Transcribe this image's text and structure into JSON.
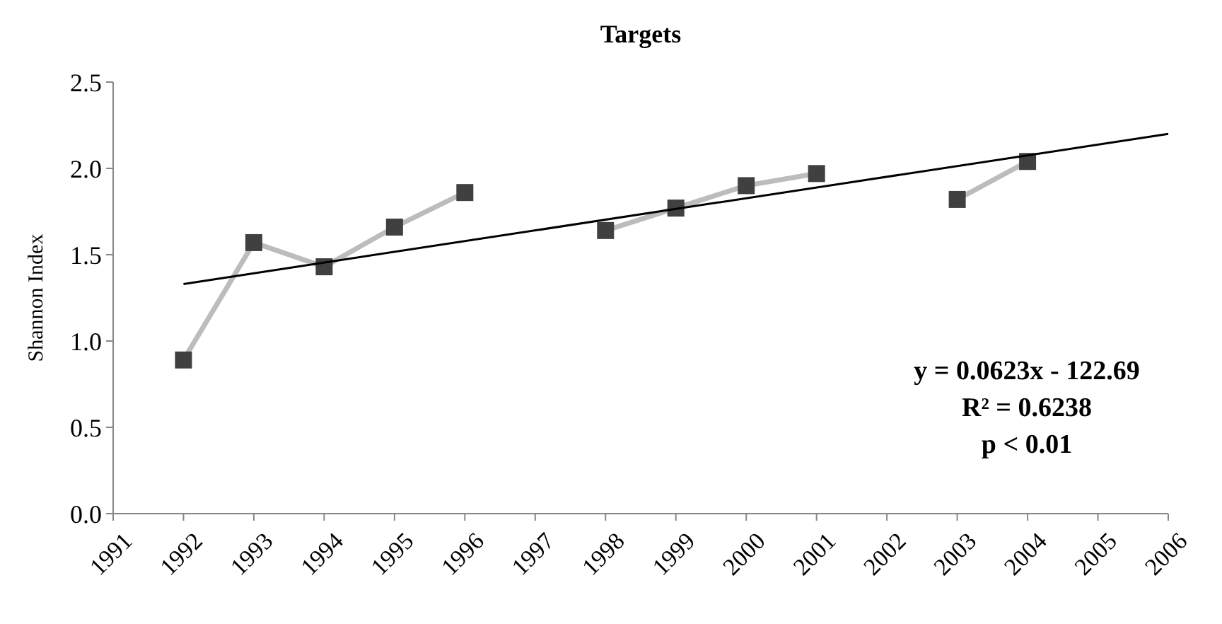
{
  "chart_data": {
    "type": "line",
    "title": "Targets",
    "ylabel": "Shannon Index",
    "x": [
      1992,
      1993,
      1994,
      1995,
      1996,
      1997,
      1998,
      1999,
      2000,
      2001,
      2002,
      2003,
      2004
    ],
    "series": [
      {
        "color": "#404040",
        "values": [
          0.89,
          1.57,
          1.43,
          1.66,
          1.86,
          null,
          1.64,
          1.77,
          1.9,
          1.97,
          null,
          1.82,
          2.04
        ]
      },
      {
        "type": "line",
        "color": "#000000",
        "marker": "none",
        "x": [
          1992,
          2006
        ],
        "values": [
          1.33,
          2.2
        ]
      }
    ],
    "xlim": [
      1991,
      2006
    ],
    "xticks": [
      1991,
      1992,
      1993,
      1994,
      1995,
      1996,
      1997,
      1998,
      1999,
      2000,
      2001,
      2002,
      2003,
      2004,
      2005,
      2006
    ],
    "ylim": [
      0,
      2.5
    ],
    "yticks": [
      {
        "value": 0,
        "label": "0.0"
      },
      {
        "value": 0.5,
        "label": "0.5"
      },
      {
        "value": 1,
        "label": "1.0"
      },
      {
        "value": 1.5,
        "label": "1.5"
      },
      {
        "value": 2,
        "label": "2.0"
      },
      {
        "value": 2.5,
        "label": "2.5"
      }
    ],
    "marker": "square",
    "line_style": "solid",
    "grid": false,
    "annotations": [
      "y = 0.0623x - 122.69",
      "R² = 0.6238",
      "p < 0.01"
    ]
  }
}
